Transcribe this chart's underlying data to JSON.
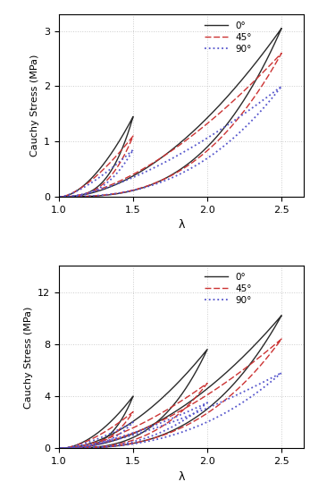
{
  "top": {
    "ylim": [
      0,
      3.3
    ],
    "yticks": [
      0,
      1,
      2,
      3
    ],
    "xlabel": "λ",
    "ylabel": "Cauchy Stress (MPa)",
    "cycles_0": [
      {
        "lambda_max": 1.5,
        "stress_max": 1.45,
        "power_up": 3.2,
        "power_down": 1.7
      },
      {
        "lambda_max": 2.5,
        "stress_max": 3.05,
        "power_up": 3.0,
        "power_down": 1.8
      }
    ],
    "cycles_45": [
      {
        "lambda_max": 1.5,
        "stress_max": 1.1,
        "power_up": 3.0,
        "power_down": 1.5
      },
      {
        "lambda_max": 2.5,
        "stress_max": 2.6,
        "power_up": 2.8,
        "power_down": 1.6
      }
    ],
    "cycles_90": [
      {
        "lambda_max": 1.5,
        "stress_max": 0.85,
        "power_up": 2.8,
        "power_down": 1.4
      },
      {
        "lambda_max": 2.5,
        "stress_max": 2.0,
        "power_up": 2.6,
        "power_down": 1.5
      }
    ]
  },
  "bottom": {
    "ylim": [
      0,
      14
    ],
    "yticks": [
      0,
      4,
      8,
      12
    ],
    "xlabel": "λ",
    "ylabel": "Cauchy Stress (MPa)",
    "cycles_0": [
      {
        "lambda_max": 1.5,
        "stress_max": 4.0,
        "power_up": 3.5,
        "power_down": 1.8
      },
      {
        "lambda_max": 2.0,
        "stress_max": 7.6,
        "power_up": 3.2,
        "power_down": 1.8
      },
      {
        "lambda_max": 2.5,
        "stress_max": 10.2,
        "power_up": 3.0,
        "power_down": 1.9
      }
    ],
    "cycles_45": [
      {
        "lambda_max": 1.5,
        "stress_max": 2.8,
        "power_up": 3.2,
        "power_down": 1.6
      },
      {
        "lambda_max": 2.0,
        "stress_max": 5.0,
        "power_up": 3.0,
        "power_down": 1.6
      },
      {
        "lambda_max": 2.5,
        "stress_max": 8.4,
        "power_up": 2.8,
        "power_down": 1.7
      }
    ],
    "cycles_90": [
      {
        "lambda_max": 1.5,
        "stress_max": 2.0,
        "power_up": 3.0,
        "power_down": 1.5
      },
      {
        "lambda_max": 2.0,
        "stress_max": 3.5,
        "power_up": 2.8,
        "power_down": 1.5
      },
      {
        "lambda_max": 2.5,
        "stress_max": 5.8,
        "power_up": 2.6,
        "power_down": 1.5
      }
    ]
  },
  "color_0": "#2b2b2b",
  "color_45": "#cc3333",
  "color_90": "#5555cc",
  "lw_0": 1.0,
  "lw_45": 1.0,
  "lw_90": 1.3,
  "xlim": [
    1.0,
    2.65
  ],
  "xticks": [
    1.0,
    1.5,
    2.0,
    2.5
  ]
}
